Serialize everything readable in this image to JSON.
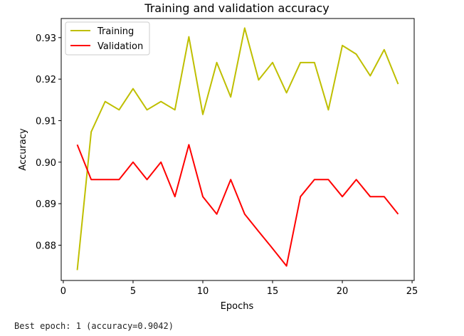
{
  "chart_data": {
    "type": "line",
    "title": "Training and validation accuracy",
    "xlabel": "Epochs",
    "ylabel": "Accuracy",
    "xlim": [
      -0.15,
      25.15
    ],
    "ylim": [
      0.8715,
      0.9346
    ],
    "xticks": [
      0,
      5,
      10,
      15,
      20,
      25
    ],
    "xtick_labels": [
      "0",
      "5",
      "10",
      "15",
      "20",
      "25"
    ],
    "yticks": [
      0.88,
      0.89,
      0.9,
      0.91,
      0.92,
      0.93
    ],
    "ytick_labels": [
      "0.88",
      "0.89",
      "0.90",
      "0.91",
      "0.92",
      "0.93"
    ],
    "grid": false,
    "legend": "upper left",
    "x": [
      1,
      2,
      3,
      4,
      5,
      6,
      7,
      8,
      9,
      10,
      11,
      12,
      13,
      14,
      15,
      16,
      17,
      18,
      19,
      20,
      21,
      22,
      23,
      24
    ],
    "series": [
      {
        "name": "Training",
        "color": "#bfbf00",
        "values": [
          0.874,
          0.9073,
          0.9146,
          0.9126,
          0.9177,
          0.9126,
          0.9146,
          0.9126,
          0.9302,
          0.9115,
          0.924,
          0.9157,
          0.9323,
          0.9198,
          0.924,
          0.9167,
          0.924,
          0.924,
          0.9126,
          0.9281,
          0.926,
          0.9208,
          0.9271,
          0.9188
        ]
      },
      {
        "name": "Validation",
        "color": "#ff0000",
        "values": [
          0.9042,
          0.8958,
          0.8958,
          0.8958,
          0.9,
          0.8958,
          0.9,
          0.8917,
          0.9042,
          0.8917,
          0.8875,
          0.8958,
          0.8875,
          0.8833,
          0.8792,
          0.875,
          0.8917,
          0.8958,
          0.8958,
          0.8917,
          0.8958,
          0.8917,
          0.8917,
          0.8875
        ]
      }
    ]
  },
  "caption": "Best epoch: 1 (accuracy=0.9042)"
}
